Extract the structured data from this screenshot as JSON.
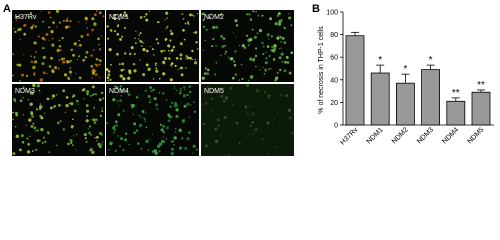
{
  "panel_labels": [
    "A",
    "B"
  ],
  "micrographs": [
    {
      "label": "H37Rv"
    },
    {
      "label": "NDM1"
    },
    {
      "label": "NDM2"
    },
    {
      "label": "NDM3"
    },
    {
      "label": "NDM4"
    },
    {
      "label": "NDM5"
    }
  ],
  "chart_data": {
    "type": "bar",
    "y_label": "% of necrosis in THP-1 cells",
    "categories": [
      "H37Rv",
      "NDM1",
      "NDM2",
      "NDM3",
      "NDM4",
      "NDM5"
    ],
    "values": [
      79,
      46,
      37,
      49,
      21,
      29
    ],
    "errors": [
      3,
      7,
      8,
      4,
      3,
      2
    ],
    "annotations": [
      null,
      "*",
      "*",
      "*",
      "**",
      "**"
    ],
    "color": "#999999",
    "ylim": [
      0,
      100
    ],
    "yticks": [
      0,
      20,
      40,
      60,
      80,
      100
    ]
  }
}
